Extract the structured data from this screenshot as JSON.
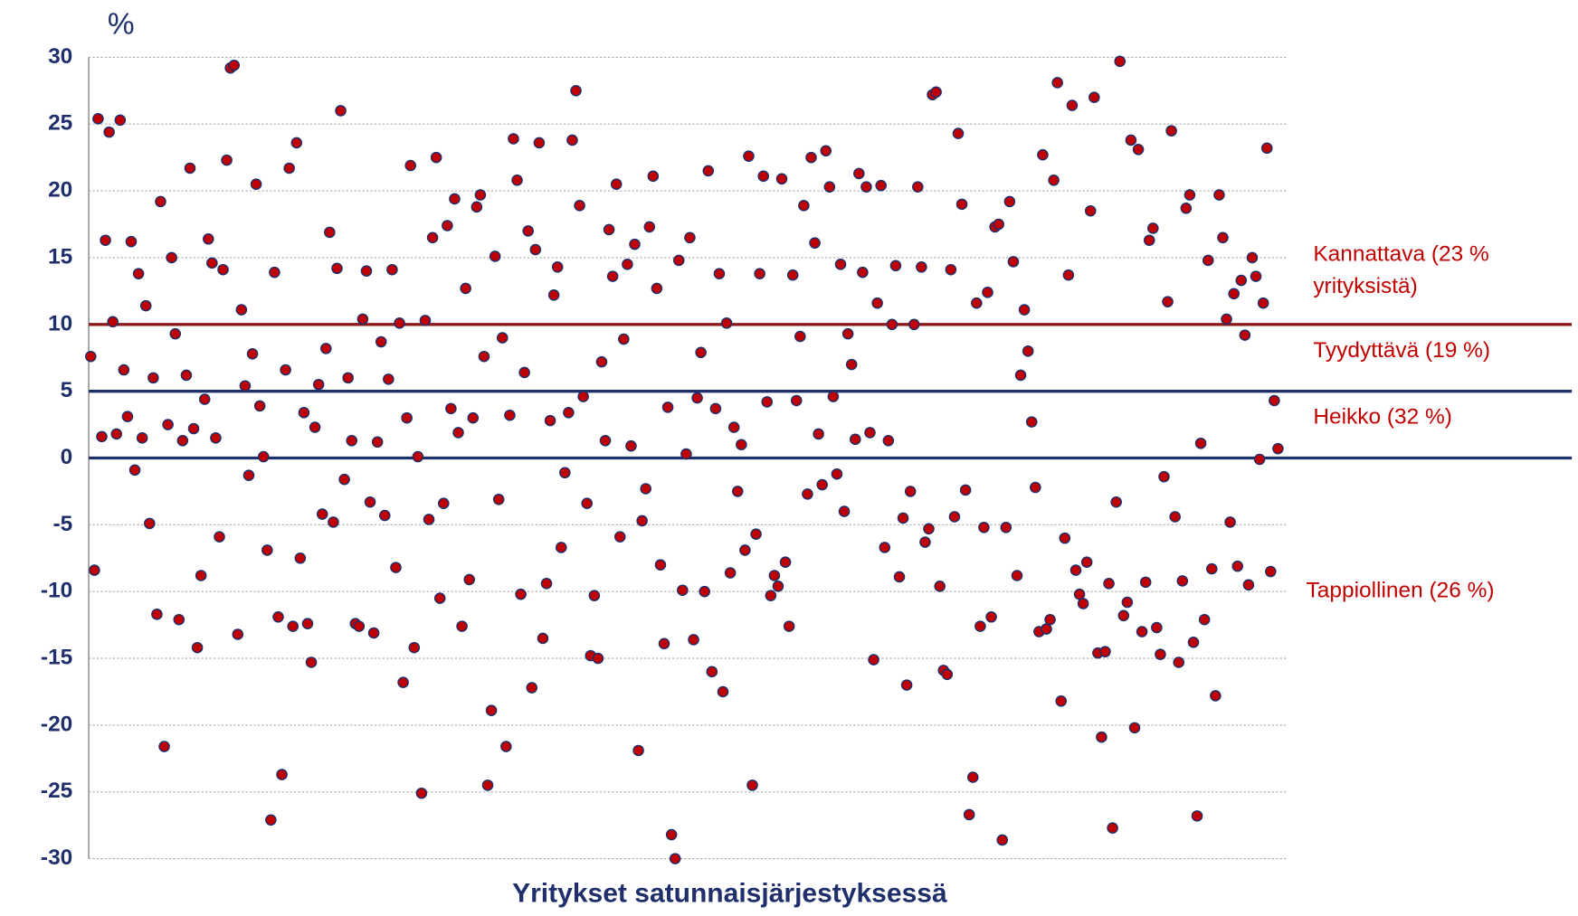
{
  "chart_data": {
    "type": "scatter",
    "y_label": "%",
    "x_label": "Yritykset satunnaisjärjestyksessä",
    "ylim": [
      -30,
      30
    ],
    "yticks": [
      -30,
      -25,
      -20,
      -15,
      -10,
      -5,
      0,
      5,
      10,
      15,
      20,
      25,
      30
    ],
    "grid": true,
    "color": "#c00000",
    "reference_lines": [
      {
        "value": 10,
        "color": "#8b1a1a"
      },
      {
        "value": 5,
        "color": "#1f2f6b"
      },
      {
        "value": 0,
        "color": "#1f2f6b"
      }
    ],
    "annotations": [
      {
        "lines": [
          "Kannattava (23 %",
          "yrityksistä)"
        ],
        "y": 14
      },
      {
        "lines": [
          "Tyydyttävä (19 %)"
        ],
        "y": 8
      },
      {
        "lines": [
          "Heikko (32 %)"
        ],
        "y": 3
      },
      {
        "lines": [
          "Tappiollinen (26 %)"
        ],
        "y": -10
      }
    ],
    "values": [
      7.6,
      -8.4,
      25.4,
      1.6,
      16.3,
      24.4,
      10.2,
      1.8,
      25.3,
      6.6,
      3.1,
      16.2,
      -0.9,
      13.8,
      1.5,
      11.4,
      -4.9,
      6.0,
      -11.7,
      19.2,
      -21.6,
      2.5,
      15.0,
      9.3,
      -12.1,
      1.3,
      6.2,
      21.7,
      2.2,
      -14.2,
      -8.8,
      4.4,
      16.4,
      14.6,
      1.5,
      -5.9,
      14.1,
      22.3,
      29.2,
      29.4,
      -13.2,
      11.1,
      5.4,
      -1.3,
      7.8,
      20.5,
      3.9,
      0.1,
      -6.9,
      -27.1,
      13.9,
      -11.9,
      -23.7,
      6.6,
      21.7,
      -12.6,
      23.6,
      -7.5,
      3.4,
      -12.4,
      -15.3,
      2.3,
      5.5,
      -4.2,
      8.2,
      16.9,
      -4.8,
      14.2,
      26.0,
      -1.6,
      6.0,
      1.3,
      -12.4,
      -12.6,
      10.4,
      14.0,
      -3.3,
      -13.1,
      1.2,
      8.7,
      -4.3,
      5.9,
      14.1,
      -8.2,
      10.1,
      -16.8,
      3.0,
      21.9,
      -14.2,
      0.1,
      -25.1,
      10.3,
      -4.6,
      16.5,
      22.5,
      -10.5,
      -3.4,
      17.4,
      3.7,
      19.4,
      1.9,
      -12.6,
      12.7,
      -9.1,
      3.0,
      18.8,
      19.7,
      7.6,
      -24.5,
      -18.9,
      15.1,
      -3.1,
      9.0,
      -21.6,
      3.2,
      23.9,
      20.8,
      -10.2,
      6.4,
      17.0,
      -17.2,
      15.6,
      23.6,
      -13.5,
      -9.4,
      2.8,
      12.2,
      14.3,
      -6.7,
      -1.1,
      3.4,
      23.8,
      27.5,
      18.9,
      4.6,
      -3.4,
      -14.8,
      -10.3,
      -15.0,
      7.2,
      1.3,
      17.1,
      13.6,
      20.5,
      -5.9,
      8.9,
      14.5,
      0.9,
      16.0,
      -21.9,
      -4.7,
      -2.3,
      17.3,
      21.1,
      12.7,
      -8.0,
      -13.9,
      3.8,
      -28.2,
      -30.0,
      14.8,
      -9.9,
      0.3,
      16.5,
      -13.6,
      4.5,
      7.9,
      -10.0,
      21.5,
      -16.0,
      3.7,
      13.8,
      -17.5,
      10.1,
      -8.6,
      2.3,
      -2.5,
      1.0,
      -6.9,
      22.6,
      -24.5,
      -5.7,
      13.8,
      21.1,
      4.2,
      -10.3,
      -8.8,
      -9.6,
      20.9,
      -7.8,
      -12.6,
      13.7,
      4.3,
      9.1,
      18.9,
      -2.7,
      22.5,
      16.1,
      1.8,
      -2.0,
      23.0,
      20.3,
      4.6,
      -1.2,
      14.5,
      -4.0,
      9.3,
      7.0,
      1.4,
      21.3,
      13.9,
      20.3,
      1.9,
      -15.1,
      11.6,
      20.4,
      -6.7,
      1.3,
      10.0,
      14.4,
      -8.9,
      -4.5,
      -17.0,
      -2.5,
      10.0,
      20.3,
      14.3,
      -6.3,
      -5.3,
      27.2,
      27.4,
      -9.6,
      -15.9,
      -16.2,
      14.1,
      -4.4,
      24.3,
      19.0,
      -2.4,
      -26.7,
      -23.9,
      11.6,
      -12.6,
      -5.2,
      12.4,
      -11.9,
      17.3,
      17.5,
      -28.6,
      -5.2,
      19.2,
      14.7,
      -8.8,
      6.2,
      11.1,
      8.0,
      2.7,
      -2.2,
      -13.0,
      22.7,
      -12.8,
      -12.1,
      20.8,
      28.1,
      -18.2,
      -6.0,
      13.7,
      26.4,
      -8.4,
      -10.2,
      -10.9,
      -7.8,
      18.5,
      27.0,
      -14.6,
      -20.9,
      -14.5,
      -9.4,
      -27.7,
      -3.3,
      29.7,
      -11.8,
      -10.8,
      23.8,
      -20.2,
      23.1,
      -13.0,
      -9.3,
      16.3,
      17.2,
      -12.7,
      -14.7,
      -1.4,
      11.7,
      24.5,
      -4.4,
      -15.3,
      -9.2,
      18.7,
      19.7,
      -13.8,
      -26.8,
      1.1,
      -12.1,
      14.8,
      -8.3,
      -17.8,
      19.7,
      16.5,
      10.4,
      -4.8,
      12.3,
      -8.1,
      13.3,
      9.2,
      -9.5,
      15.0,
      13.6,
      -0.1,
      11.6,
      23.2,
      -8.5,
      4.3,
      0.7
    ]
  }
}
